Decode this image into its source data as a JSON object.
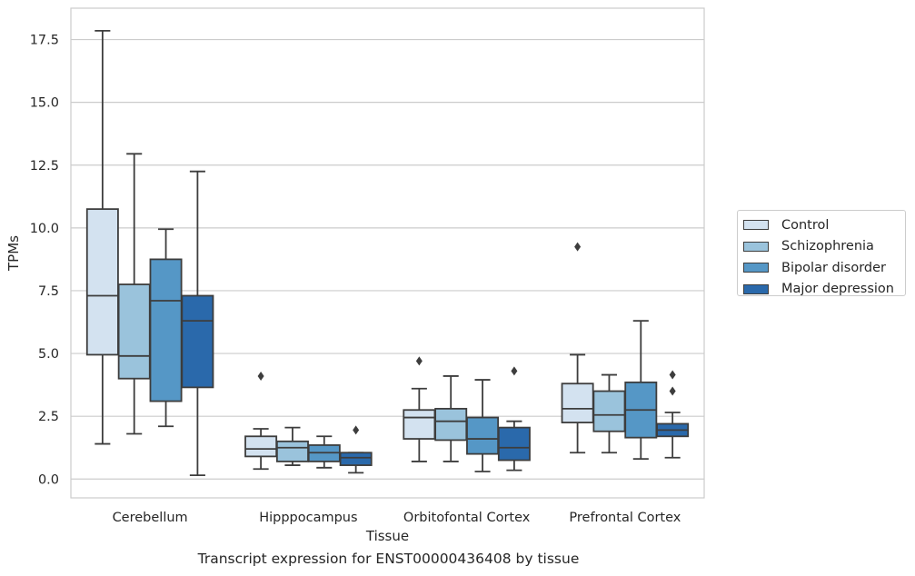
{
  "caption": "Transcript expression for ENST00000436408 by tissue",
  "chart_data": {
    "type": "box",
    "xlabel": "Tissue",
    "ylabel": "TPMs",
    "ylim": [
      -0.75,
      18.75
    ],
    "yticks": [
      0.0,
      2.5,
      5.0,
      7.5,
      10.0,
      12.5,
      15.0,
      17.5
    ],
    "ytick_labels": [
      "0.0",
      "2.5",
      "5.0",
      "7.5",
      "10.0",
      "12.5",
      "15.0",
      "17.5"
    ],
    "grid": "horizontal",
    "legend_position": "right",
    "categories": [
      "Cerebellum",
      "Hipppocampus",
      "Orbitofontal Cortex",
      "Prefrontal Cortex"
    ],
    "series": [
      {
        "name": "Control",
        "color": "#d3e2f0",
        "boxes": [
          {
            "min": 1.4,
            "q1": 4.95,
            "median": 7.3,
            "q3": 10.75,
            "max": 17.85,
            "outliers": []
          },
          {
            "min": 0.4,
            "q1": 0.9,
            "median": 1.2,
            "q3": 1.7,
            "max": 2.0,
            "outliers": [
              4.1
            ]
          },
          {
            "min": 0.7,
            "q1": 1.6,
            "median": 2.45,
            "q3": 2.75,
            "max": 3.6,
            "outliers": [
              4.7
            ]
          },
          {
            "min": 1.05,
            "q1": 2.25,
            "median": 2.8,
            "q3": 3.8,
            "max": 4.95,
            "outliers": [
              9.25
            ]
          }
        ]
      },
      {
        "name": "Schizophrenia",
        "color": "#9ac3dc",
        "boxes": [
          {
            "min": 1.8,
            "q1": 4.0,
            "median": 4.9,
            "q3": 7.75,
            "max": 12.95,
            "outliers": []
          },
          {
            "min": 0.55,
            "q1": 0.7,
            "median": 1.25,
            "q3": 1.5,
            "max": 2.05,
            "outliers": []
          },
          {
            "min": 0.7,
            "q1": 1.55,
            "median": 2.3,
            "q3": 2.8,
            "max": 4.1,
            "outliers": []
          },
          {
            "min": 1.05,
            "q1": 1.9,
            "median": 2.55,
            "q3": 3.5,
            "max": 4.15,
            "outliers": []
          }
        ]
      },
      {
        "name": "Bipolar disorder",
        "color": "#5597c6",
        "boxes": [
          {
            "min": 2.1,
            "q1": 3.1,
            "median": 7.1,
            "q3": 8.75,
            "max": 9.95,
            "outliers": []
          },
          {
            "min": 0.45,
            "q1": 0.7,
            "median": 1.05,
            "q3": 1.35,
            "max": 1.7,
            "outliers": []
          },
          {
            "min": 0.3,
            "q1": 1.0,
            "median": 1.6,
            "q3": 2.45,
            "max": 3.95,
            "outliers": []
          },
          {
            "min": 0.8,
            "q1": 1.65,
            "median": 2.75,
            "q3": 3.85,
            "max": 6.3,
            "outliers": []
          }
        ]
      },
      {
        "name": "Major depression",
        "color": "#2a69ab",
        "boxes": [
          {
            "min": 0.15,
            "q1": 3.65,
            "median": 6.3,
            "q3": 7.3,
            "max": 12.25,
            "outliers": []
          },
          {
            "min": 0.25,
            "q1": 0.55,
            "median": 0.85,
            "q3": 1.05,
            "max": 1.05,
            "outliers": [
              1.95
            ]
          },
          {
            "min": 0.35,
            "q1": 0.75,
            "median": 1.25,
            "q3": 2.05,
            "max": 2.3,
            "outliers": [
              4.3
            ]
          },
          {
            "min": 0.85,
            "q1": 1.7,
            "median": 1.95,
            "q3": 2.2,
            "max": 2.65,
            "outliers": [
              3.5,
              4.15
            ]
          }
        ]
      }
    ]
  }
}
